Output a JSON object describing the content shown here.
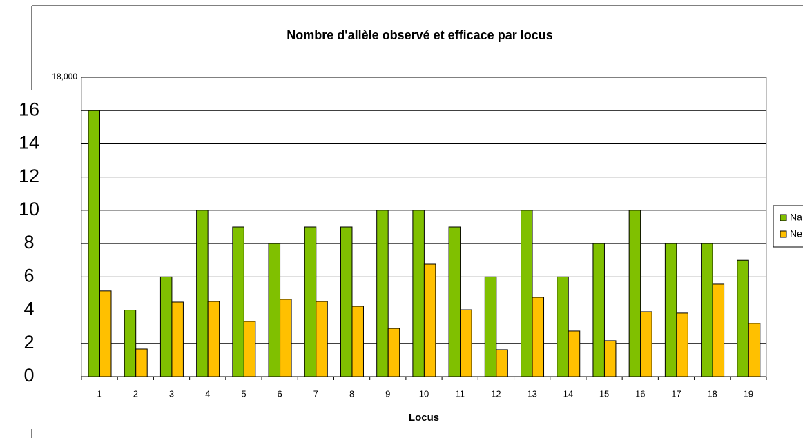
{
  "chart_data": {
    "type": "bar",
    "title": "Nombre d'allèle observé et efficace par locus",
    "x_label": "Locus",
    "categories": [
      "1",
      "2",
      "3",
      "4",
      "5",
      "6",
      "7",
      "8",
      "9",
      "10",
      "11",
      "12",
      "13",
      "14",
      "15",
      "16",
      "17",
      "18",
      "19"
    ],
    "series": [
      {
        "name": "Na",
        "color": "#80c000",
        "values": [
          16,
          4,
          6,
          10,
          9,
          8,
          9,
          9,
          10,
          10,
          9,
          6,
          10,
          6,
          8,
          10,
          8,
          8,
          7
        ]
      },
      {
        "name": "Ne",
        "color": "#ffc000",
        "values": [
          5.15,
          1.66,
          4.48,
          4.52,
          3.32,
          4.65,
          4.52,
          4.23,
          2.9,
          6.76,
          4.02,
          1.62,
          4.77,
          2.74,
          2.16,
          3.9,
          3.82,
          5.56,
          3.2
        ]
      }
    ],
    "ylim": [
      0,
      18
    ],
    "yticks": [
      0,
      2,
      4,
      6,
      8,
      10,
      12,
      14,
      16,
      {
        "value": 18,
        "label": "18,000"
      }
    ],
    "grid": true,
    "legend": "right"
  }
}
